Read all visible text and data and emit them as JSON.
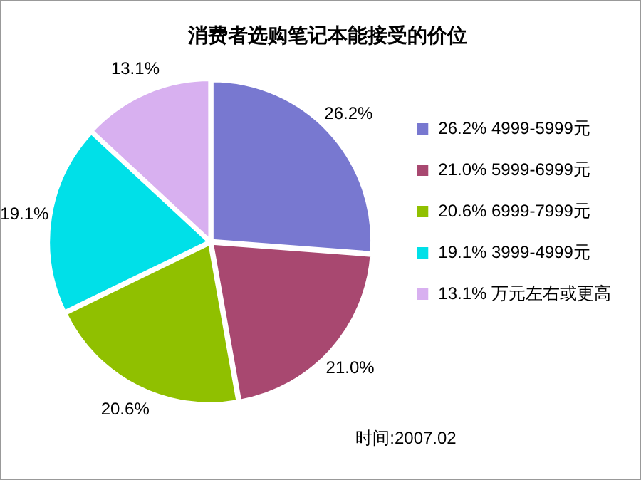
{
  "chart_data": {
    "type": "pie",
    "title": "消费者选购笔记本能接受的价位",
    "categories": [
      "26.2% 4999-5999元",
      "21.0% 5999-6999元",
      "20.6% 6999-7999元",
      "19.1% 3999-4999元",
      "13.1% 万元左右或更高"
    ],
    "values": [
      26.2,
      21.0,
      20.6,
      19.1,
      13.1
    ],
    "colors": [
      "#7878d0",
      "#a84870",
      "#90c000",
      "#00e0e8",
      "#d8b0f0"
    ],
    "value_labels": [
      "26.2%",
      "21.0%",
      "20.6%",
      "19.1%",
      "13.1%"
    ],
    "legend": "right",
    "annotations": [
      "时间:2007.02"
    ]
  }
}
